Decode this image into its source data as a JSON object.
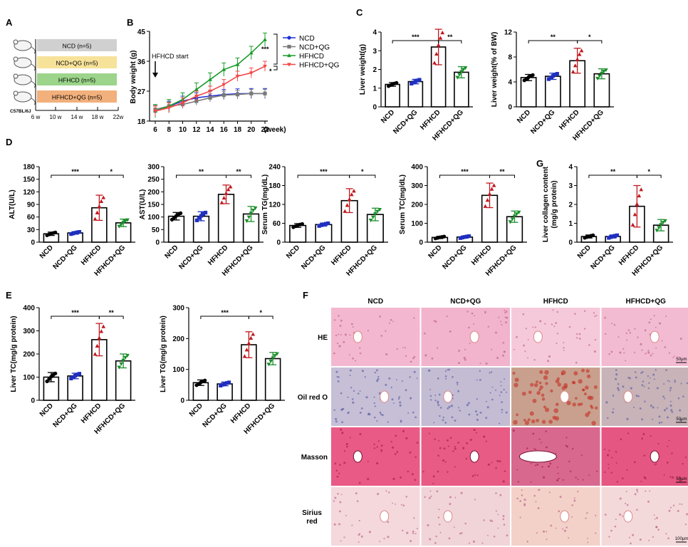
{
  "colors": {
    "ncd": "#000000",
    "ncd_qg": "#1f2fbf",
    "hfhcd": "#c0181e",
    "hfhcd_qg": "#1a8f2a",
    "line_ncd": "#1f2fd6",
    "line_ncd_qg": "#7a7a7a",
    "line_hfhcd": "#1b9b2a",
    "line_hfhcd_qg": "#f24848",
    "timeline_ncd": "#d0d0d0",
    "timeline_ncd_qg": "#f7e29a",
    "timeline_hfhcd": "#9bd48a",
    "timeline_hfhcd_qg": "#f2b07c"
  },
  "panel_A": {
    "letter": "A",
    "strain": "C57BL/6J",
    "groups": [
      "NCD (n=5)",
      "NCD+QG (n=5)",
      "HFHCD (n=5)",
      "HFHCD+QG (n=5)"
    ],
    "weeks": [
      "6 w",
      "10 w",
      "14 w",
      "18 w",
      "22w"
    ]
  },
  "panel_F": {
    "letter": "F",
    "columns": [
      "NCD",
      "NCD+QG",
      "HFHCD",
      "HFHCD+QG"
    ],
    "rows": [
      {
        "label": "HE",
        "scale": "50μm"
      },
      {
        "label": "Oil red O",
        "scale": "50μm"
      },
      {
        "label": "Masson",
        "scale": "50μm"
      },
      {
        "label": "Sirius red",
        "scale": "100μm"
      }
    ]
  },
  "chart_data": [
    {
      "panel": "B",
      "type": "line",
      "ylabel": "Body weight (g)",
      "xlabel": "(week)",
      "x": [
        6,
        8,
        10,
        12,
        14,
        16,
        18,
        20,
        22
      ],
      "ylim": [
        18,
        45
      ],
      "yticks": [
        18,
        27,
        36,
        45
      ],
      "annotation": "HFHCD start",
      "sig": [
        "***",
        "*"
      ],
      "series": [
        {
          "name": "NCD",
          "values": [
            21,
            22.5,
            24,
            25,
            25.5,
            26,
            26.2,
            26.3,
            26.3
          ]
        },
        {
          "name": "NCD+QG",
          "values": [
            21.5,
            22.5,
            23,
            24,
            25,
            25.8,
            26,
            26.3,
            26.3
          ]
        },
        {
          "name": "HFHCD",
          "values": [
            21,
            22.5,
            24.5,
            27.5,
            30.5,
            33.5,
            35,
            38.5,
            42.5
          ]
        },
        {
          "name": "HFHCD+QG",
          "values": [
            21,
            22,
            23.5,
            25.5,
            27,
            29,
            31.5,
            32.5,
            34.5
          ]
        }
      ]
    },
    {
      "panel": "C",
      "type": "bar",
      "ylabel": "Liver weight(g)",
      "categories": [
        "NCD",
        "NCD+QG",
        "HFHCD",
        "HFHCD+QG"
      ],
      "values": [
        1.2,
        1.35,
        3.2,
        1.85
      ],
      "errors": [
        0.1,
        0.12,
        0.95,
        0.3
      ],
      "ylim": [
        0,
        4
      ],
      "yticks": [
        0,
        1,
        2,
        3,
        4
      ],
      "sig": [
        "***",
        "**"
      ]
    },
    {
      "panel": "C",
      "type": "bar",
      "ylabel": "Liver weight(% of BW)",
      "categories": [
        "NCD",
        "NCD+QG",
        "HFHCD",
        "HFHCD+QG"
      ],
      "values": [
        4.7,
        4.9,
        7.4,
        5.3
      ],
      "errors": [
        0.5,
        0.5,
        2.0,
        0.8
      ],
      "ylim": [
        0,
        12
      ],
      "yticks": [
        0,
        4,
        8,
        12
      ],
      "sig": [
        "**",
        "*"
      ]
    },
    {
      "panel": "D",
      "type": "bar",
      "ylabel": "ALT(U/L)",
      "categories": [
        "NCD",
        "NCD+QG",
        "HFHCD",
        "HFHCD+QG"
      ],
      "values": [
        20,
        22,
        82,
        46
      ],
      "errors": [
        4,
        3,
        30,
        9
      ],
      "ylim": [
        0,
        180
      ],
      "yticks": [
        0,
        30,
        60,
        90,
        120,
        150,
        180
      ],
      "sig": [
        "***",
        "*"
      ]
    },
    {
      "panel": "D",
      "type": "bar",
      "ylabel": "AST(U/L)",
      "categories": [
        "NCD",
        "NCD+QG",
        "HFHCD",
        "HFHCD+QG"
      ],
      "values": [
        103,
        103,
        190,
        112
      ],
      "errors": [
        15,
        18,
        37,
        30
      ],
      "ylim": [
        0,
        300
      ],
      "yticks": [
        0,
        50,
        100,
        150,
        200,
        250,
        300
      ],
      "sig": [
        "**",
        "**"
      ]
    },
    {
      "panel": "D",
      "type": "bar",
      "ylabel": "Serum TG(mg/dL)",
      "categories": [
        "NCD",
        "NCD+QG",
        "HFHCD",
        "HFHCD+QG"
      ],
      "values": [
        53,
        56,
        132,
        88
      ],
      "errors": [
        6,
        5,
        38,
        20
      ],
      "ylim": [
        0,
        240
      ],
      "yticks": [
        0,
        60,
        120,
        180,
        240
      ],
      "sig": [
        "***",
        "*"
      ]
    },
    {
      "panel": "D",
      "type": "bar",
      "ylabel": "Serum TC(mg/dL)",
      "categories": [
        "NCD",
        "NCD+QG",
        "HFHCD",
        "HFHCD+QG"
      ],
      "values": [
        25,
        27,
        248,
        135
      ],
      "errors": [
        6,
        6,
        65,
        30
      ],
      "ylim": [
        0,
        400
      ],
      "yticks": [
        0,
        100,
        200,
        300,
        400
      ],
      "sig": [
        "***",
        "**"
      ]
    },
    {
      "panel": "G",
      "type": "bar",
      "ylabel": "Liver collagen content\n(mg/g protein)",
      "categories": [
        "NCD",
        "NCD+QG",
        "HFHCD",
        "HFHCD+QG"
      ],
      "values": [
        0.3,
        0.3,
        1.9,
        0.9
      ],
      "errors": [
        0.08,
        0.08,
        1.1,
        0.3
      ],
      "ylim": [
        0,
        4
      ],
      "yticks": [
        0,
        1,
        2,
        3,
        4
      ],
      "sig": [
        "**",
        "*"
      ]
    },
    {
      "panel": "E",
      "type": "bar",
      "ylabel": "Liver TC(mg/g protein)",
      "categories": [
        "NCD",
        "NCD+QG",
        "HFHCD",
        "HFHCD+QG"
      ],
      "values": [
        100,
        105,
        262,
        170
      ],
      "errors": [
        20,
        12,
        70,
        30
      ],
      "ylim": [
        0,
        400
      ],
      "yticks": [
        0,
        100,
        200,
        300,
        400
      ],
      "sig": [
        "***",
        "**"
      ]
    },
    {
      "panel": "E",
      "type": "bar",
      "ylabel": "Liver TG(mg/g protein)",
      "categories": [
        "NCD",
        "NCD+QG",
        "HFHCD",
        "HFHCD+QG"
      ],
      "values": [
        57,
        53,
        180,
        135
      ],
      "errors": [
        9,
        6,
        42,
        20
      ],
      "ylim": [
        0,
        300
      ],
      "yticks": [
        0,
        100,
        200,
        300
      ],
      "sig": [
        "***",
        "*"
      ]
    }
  ]
}
